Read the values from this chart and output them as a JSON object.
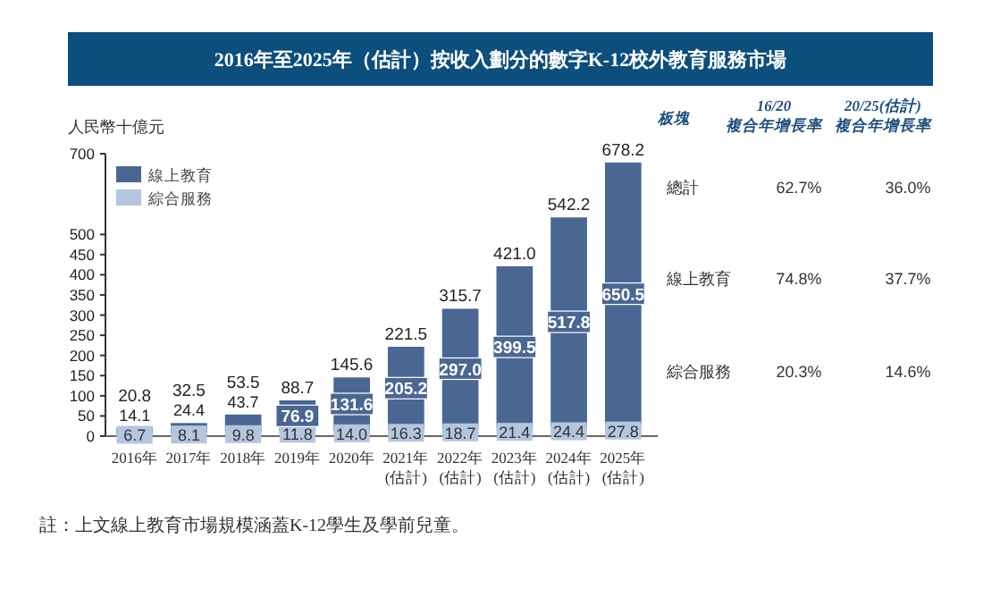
{
  "chart_data": [
    {
      "type": "bar",
      "title": "2016年至2025年（估計）按收入劃分的數字K-12校外教育服務市場",
      "ylabel": "人民幣十億元",
      "categories": [
        "2016年",
        "2017年",
        "2018年",
        "2019年",
        "2020年",
        "2021年\n(估計)",
        "2022年\n(估計)",
        "2023年\n(估計)",
        "2024年\n(估計)",
        "2025年\n(估計)"
      ],
      "series": [
        {
          "name": "綜合服務",
          "color": "#b4c5de",
          "values": [
            6.7,
            8.1,
            9.8,
            11.8,
            14.0,
            16.3,
            18.7,
            21.4,
            24.4,
            27.8
          ],
          "value_labels": [
            "6.7",
            "8.1",
            "9.8",
            "11.8",
            "14.0",
            "16.3",
            "18.7",
            "21.4",
            "24.4",
            "27.8"
          ]
        },
        {
          "name": "線上教育",
          "color": "#4a6794",
          "values": [
            14.1,
            24.4,
            43.7,
            76.9,
            131.6,
            205.2,
            297.0,
            399.5,
            517.8,
            650.5
          ],
          "value_labels": [
            "14.1",
            "24.4",
            "43.7",
            "76.9",
            "131.6",
            "205.2",
            "297.0",
            "399.5",
            "517.8",
            "650.5"
          ]
        }
      ],
      "stacked": true,
      "totals": [
        "20.8",
        "32.5",
        "53.5",
        "88.7",
        "145.6",
        "221.5",
        "315.7",
        "421.0",
        "542.2",
        "678.2"
      ],
      "ylim": [
        0,
        700
      ],
      "yticks": [
        0,
        50,
        100,
        150,
        200,
        250,
        300,
        350,
        400,
        450,
        500,
        700
      ],
      "legend": "top left",
      "grid": false,
      "annotations": [
        "註：上文線上教育市場規模涵蓋K-12學生及學前兒童。"
      ]
    },
    {
      "type": "other",
      "annotations": [
        "板塊",
        "16/20\n複合年增長率",
        "20/25(估計)\n複合年增長率",
        "總計",
        "62.7%",
        "36.0%",
        "線上教育",
        "74.8%",
        "37.7%",
        "綜合服務",
        "20.3%",
        "14.6%"
      ]
    }
  ]
}
